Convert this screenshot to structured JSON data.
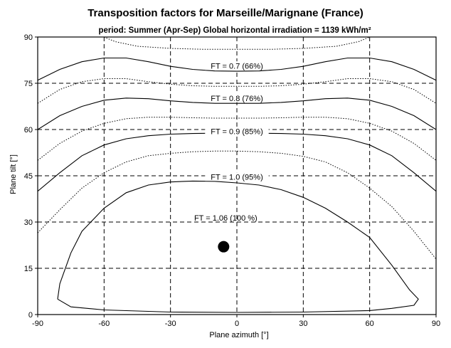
{
  "chart_data": {
    "type": "contour",
    "title": "Transposition factors for Marseille/Marignane (France)",
    "subtitle": "period: Summer (Apr-Sep) Global horizontal irradiation =  1139 kWh/m²",
    "xlabel": "Plane azimuth [°]",
    "ylabel": "Plane tilt [°]",
    "xlim": [
      -90,
      90
    ],
    "ylim": [
      0,
      90
    ],
    "xticks": [
      -90,
      -60,
      -30,
      0,
      30,
      60,
      90
    ],
    "yticks": [
      0,
      15,
      30,
      45,
      60,
      75,
      90
    ],
    "grid": true,
    "optimum": {
      "azimuth": -6,
      "tilt": 22,
      "label": "FT = 1.06 (100 %)"
    },
    "contours": [
      {
        "label": "FT = 0.7 (66%)",
        "style": "solid",
        "label_at": [
          0,
          80.5
        ],
        "points": [
          [
            -90,
            76
          ],
          [
            -80,
            79.5
          ],
          [
            -70,
            82
          ],
          [
            -60,
            83.2
          ],
          [
            -50,
            83.2
          ],
          [
            -40,
            82
          ],
          [
            -30,
            80.5
          ],
          [
            -20,
            79.5
          ],
          [
            -10,
            79
          ],
          [
            0,
            78.9
          ],
          [
            10,
            79
          ],
          [
            20,
            79.5
          ],
          [
            30,
            80.5
          ],
          [
            40,
            82
          ],
          [
            50,
            83.2
          ],
          [
            60,
            83.2
          ],
          [
            70,
            82
          ],
          [
            80,
            79.5
          ],
          [
            90,
            76
          ]
        ]
      },
      {
        "label": "FT = 0.8 (76%)",
        "style": "solid",
        "label_at": [
          0,
          70
        ],
        "points": [
          [
            -90,
            60
          ],
          [
            -80,
            64.5
          ],
          [
            -70,
            67.5
          ],
          [
            -60,
            69.5
          ],
          [
            -50,
            70.2
          ],
          [
            -40,
            70
          ],
          [
            -30,
            69.3
          ],
          [
            -20,
            68.8
          ],
          [
            -10,
            68.5
          ],
          [
            0,
            68.5
          ],
          [
            10,
            68.5
          ],
          [
            20,
            68.8
          ],
          [
            30,
            69.3
          ],
          [
            40,
            70
          ],
          [
            50,
            70.2
          ],
          [
            60,
            69.5
          ],
          [
            70,
            67.5
          ],
          [
            80,
            64.5
          ],
          [
            90,
            60
          ]
        ]
      },
      {
        "label": "FT = 0.9 (85%)",
        "style": "solid",
        "label_at": [
          0,
          59.3
        ],
        "points": [
          [
            -90,
            40
          ],
          [
            -80,
            46
          ],
          [
            -70,
            51.5
          ],
          [
            -60,
            55
          ],
          [
            -50,
            57
          ],
          [
            -40,
            58
          ],
          [
            -30,
            58.5
          ],
          [
            -20,
            58.7
          ],
          [
            -10,
            58.8
          ],
          [
            0,
            58.8
          ],
          [
            10,
            58.8
          ],
          [
            20,
            58.7
          ],
          [
            30,
            58.5
          ],
          [
            40,
            58
          ],
          [
            50,
            57
          ],
          [
            60,
            55
          ],
          [
            70,
            51.5
          ],
          [
            80,
            46
          ],
          [
            90,
            40
          ]
        ]
      },
      {
        "label": "FT = 1.0 (95%)",
        "style": "solid",
        "label_at": [
          0,
          44.5
        ],
        "points": [
          [
            -81,
            5
          ],
          [
            -80,
            10
          ],
          [
            -75,
            20
          ],
          [
            -70,
            27
          ],
          [
            -60,
            34.5
          ],
          [
            -50,
            39.5
          ],
          [
            -40,
            42
          ],
          [
            -30,
            43
          ],
          [
            -20,
            43.3
          ],
          [
            -10,
            43.2
          ],
          [
            0,
            42.7
          ],
          [
            10,
            42
          ],
          [
            20,
            40.5
          ],
          [
            30,
            38
          ],
          [
            40,
            34.5
          ],
          [
            50,
            30
          ],
          [
            60,
            25
          ],
          [
            70,
            16
          ],
          [
            78,
            8
          ],
          [
            82,
            5
          ],
          [
            80,
            3
          ],
          [
            70,
            2
          ],
          [
            60,
            1.3
          ],
          [
            30,
            0.8
          ],
          [
            0,
            0.7
          ],
          [
            -30,
            0.8
          ],
          [
            -60,
            1.5
          ],
          [
            -75,
            2.5
          ],
          [
            -81,
            5
          ]
        ]
      }
    ],
    "dotted_contours": [
      {
        "points": [
          [
            -60,
            90
          ],
          [
            -55,
            88.5
          ],
          [
            -45,
            87
          ],
          [
            -30,
            86.3
          ],
          [
            -15,
            86
          ],
          [
            0,
            86
          ],
          [
            15,
            86
          ],
          [
            30,
            86.3
          ],
          [
            45,
            87
          ],
          [
            55,
            88.5
          ],
          [
            60,
            90
          ]
        ]
      },
      {
        "points": [
          [
            -90,
            68.5
          ],
          [
            -80,
            73
          ],
          [
            -70,
            75.5
          ],
          [
            -60,
            76.5
          ],
          [
            -50,
            76.5
          ],
          [
            -40,
            75.5
          ],
          [
            -30,
            74.7
          ],
          [
            -20,
            74.2
          ],
          [
            -10,
            74
          ],
          [
            0,
            74
          ],
          [
            10,
            74
          ],
          [
            20,
            74.2
          ],
          [
            30,
            74.7
          ],
          [
            40,
            75.5
          ],
          [
            50,
            76.5
          ],
          [
            60,
            76.5
          ],
          [
            70,
            75.5
          ],
          [
            80,
            73
          ],
          [
            90,
            68.5
          ]
        ]
      },
      {
        "points": [
          [
            -90,
            50
          ],
          [
            -80,
            55.5
          ],
          [
            -70,
            59.5
          ],
          [
            -60,
            62
          ],
          [
            -50,
            63.5
          ],
          [
            -40,
            64
          ],
          [
            -30,
            64
          ],
          [
            -20,
            63.8
          ],
          [
            -10,
            63.7
          ],
          [
            0,
            63.7
          ],
          [
            10,
            63.7
          ],
          [
            20,
            63.8
          ],
          [
            30,
            64
          ],
          [
            40,
            64
          ],
          [
            50,
            63.5
          ],
          [
            60,
            62
          ],
          [
            70,
            59.5
          ],
          [
            80,
            55.5
          ],
          [
            90,
            50
          ]
        ]
      },
      {
        "points": [
          [
            -90,
            26.5
          ],
          [
            -80,
            34
          ],
          [
            -70,
            41
          ],
          [
            -60,
            46
          ],
          [
            -50,
            49.5
          ],
          [
            -40,
            51.5
          ],
          [
            -30,
            52.3
          ],
          [
            -20,
            52.8
          ],
          [
            -10,
            53
          ],
          [
            0,
            53
          ],
          [
            10,
            52.8
          ],
          [
            20,
            52.3
          ],
          [
            30,
            51.3
          ],
          [
            40,
            49.5
          ],
          [
            50,
            46
          ],
          [
            60,
            41
          ],
          [
            70,
            35
          ],
          [
            80,
            27
          ],
          [
            90,
            18
          ]
        ]
      }
    ]
  }
}
